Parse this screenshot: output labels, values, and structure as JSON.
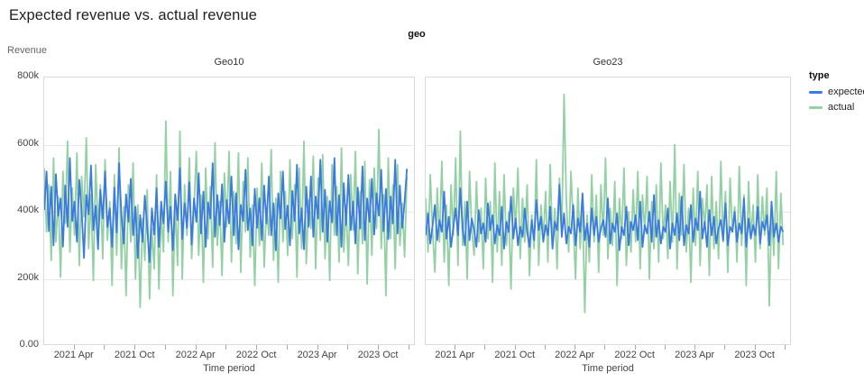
{
  "page": {
    "title": "Expected revenue vs. actual revenue"
  },
  "chart_data": {
    "type": "line",
    "title": "Expected revenue vs. actual revenue",
    "facet_field_label": "geo",
    "xlabel": "Time period",
    "ylabel": "Revenue",
    "y_unit": "thousands (k)",
    "ylim": [
      0,
      800
    ],
    "y_ticks": [
      {
        "value": 800,
        "label": "800k"
      },
      {
        "value": 600,
        "label": "600k"
      },
      {
        "value": 400,
        "label": "400k"
      },
      {
        "value": 200,
        "label": "200k"
      },
      {
        "value": 0,
        "label": "0.00"
      }
    ],
    "grid_values": [
      200,
      400,
      600
    ],
    "x_domain": [
      0,
      158
    ],
    "x_ticks": [
      {
        "pos": 13,
        "label": "2021 Apr"
      },
      {
        "pos": 26,
        "label": ""
      },
      {
        "pos": 39,
        "label": "2021 Oct"
      },
      {
        "pos": 52,
        "label": ""
      },
      {
        "pos": 65,
        "label": "2022 Apr"
      },
      {
        "pos": 78,
        "label": ""
      },
      {
        "pos": 91,
        "label": "2022 Oct"
      },
      {
        "pos": 104,
        "label": ""
      },
      {
        "pos": 117,
        "label": "2023 Apr"
      },
      {
        "pos": 130,
        "label": ""
      },
      {
        "pos": 143,
        "label": "2023 Oct"
      },
      {
        "pos": 156,
        "label": ""
      }
    ],
    "legend": {
      "title": "type",
      "position": "right",
      "items": [
        {
          "label": "expected",
          "color": "#3b7ae0"
        },
        {
          "label": "actual",
          "color": "#93d0a3"
        }
      ]
    },
    "facets": [
      {
        "label": "Geo10",
        "series": [
          {
            "name": "expected",
            "values": [
              405,
              520,
              342,
              475,
              300,
              512,
              388,
              440,
              296,
              478,
              355,
              560,
              372,
              430,
              310,
              495,
              405,
              262,
              450,
              392,
              538,
              345,
              418,
              288,
              465,
              380,
              520,
              355,
              410,
              295,
              472,
              338,
              545,
              390,
              305,
              452,
              370,
              498,
              330,
              415,
              262,
              390,
              310,
              448,
              355,
              250,
              410,
              332,
              470,
              295,
              430,
              365,
              490,
              340,
              415,
              285,
              452,
              375,
              530,
              318,
              425,
              352,
              488,
              302,
              440,
              370,
              515,
              335,
              460,
              295,
              428,
              380,
              545,
              325,
              450,
              360,
              482,
              310,
              435,
              365,
              505,
              330,
              455,
              288,
              420,
              372,
              525,
              345,
              410,
              300,
              468,
              352,
              440,
              315,
              478,
              365,
              505,
              330,
              425,
              285,
              455,
              380,
              520,
              348,
              418,
              300,
              462,
              372,
              540,
              335,
              410,
              288,
              475,
              355,
              505,
              325,
              445,
              380,
              555,
              340,
              465,
              310,
              432,
              368,
              560,
              330,
              450,
              295,
              485,
              360,
              510,
              345,
              430,
              305,
              472,
              350,
              535,
              315,
              440,
              370,
              498,
              332,
              455,
              388,
              525,
              342,
              468,
              318,
              445,
              365,
              555,
              335,
              478,
              352,
              430,
              528
            ]
          },
          {
            "name": "actual",
            "values": [
              530,
              340,
              480,
              255,
              560,
              310,
              445,
              205,
              520,
              365,
              610,
              280,
              470,
              330,
              575,
              240,
              505,
              385,
              620,
              290,
              450,
              195,
              540,
              350,
              480,
              260,
              555,
              315,
              430,
              180,
              510,
              270,
              590,
              230,
              415,
              150,
              480,
              310,
              545,
              200,
              420,
              115,
              380,
              255,
              465,
              140,
              350,
              230,
              510,
              170,
              395,
              280,
              670,
              310,
              520,
              150,
              430,
              240,
              640,
              200,
              480,
              330,
              560,
              260,
              410,
              580,
              270,
              450,
              190,
              530,
              320,
              475,
              235,
              605,
              300,
              430,
              210,
              515,
              355,
              580,
              250,
              460,
              305,
              575,
              220,
              490,
              340,
              560,
              265,
              420,
              180,
              470,
              300,
              545,
              235,
              415,
              330,
              585,
              255,
              440,
              190,
              520,
              310,
              460,
              270,
              555,
              320,
              480,
              205,
              530,
              290,
              610,
              245,
              435,
              350,
              565,
              230,
              500,
              315,
              570,
              260,
              445,
              195,
              540,
              330,
              475,
              250,
              590,
              280,
              420,
              240,
              510,
              345,
              580,
              215,
              460,
              305,
              550,
              185,
              495,
              270,
              530,
              350,
              645,
              290,
              450,
              150,
              560,
              320,
              480,
              230,
              540,
              300,
              425,
              265,
              505
            ]
          }
        ]
      },
      {
        "label": "Geo23",
        "series": [
          {
            "name": "expected",
            "values": [
              330,
              395,
              305,
              360,
              420,
              315,
              375,
              340,
              460,
              320,
              385,
              295,
              355,
              410,
              330,
              470,
              350,
              300,
              430,
              315,
              380,
              345,
              295,
              405,
              335,
              365,
              310,
              425,
              345,
              390,
              305,
              360,
              330,
              415,
              290,
              370,
              340,
              445,
              320,
              380,
              300,
              355,
              325,
              410,
              340,
              295,
              375,
              315,
              435,
              345,
              385,
              310,
              360,
              330,
              415,
              290,
              370,
              345,
              480,
              325,
              395,
              305,
              355,
              335,
              420,
              300,
              380,
              340,
              455,
              315,
              365,
              295,
              410,
              330,
              385,
              310,
              350,
              375,
              325,
              440,
              305,
              365,
              340,
              395,
              285,
              355,
              330,
              415,
              300,
              370,
              345,
              390,
              315,
              430,
              295,
              360,
              335,
              400,
              310,
              450,
              325,
              375,
              305,
              355,
              340,
              410,
              290,
              365,
              330,
              395,
              315,
              445,
              300,
              360,
              335,
              420,
              310,
              380,
              345,
              460,
              320,
              370,
              295,
              405,
              330,
              385,
              305,
              350,
              375,
              315,
              425,
              300,
              355,
              340,
              400,
              310,
              365,
              335,
              440,
              295,
              380,
              320,
              360,
              330,
              415,
              305,
              370,
              345,
              390,
              300,
              430,
              325,
              365,
              310,
              355,
              340
            ]
          },
          {
            "name": "actual",
            "values": [
              440,
              280,
              510,
              340,
              220,
              470,
              310,
              550,
              250,
              420,
              180,
              480,
              330,
              560,
              240,
              640,
              300,
              430,
              200,
              520,
              350,
              270,
              490,
              310,
              410,
              230,
              500,
              320,
              430,
              190,
              545,
              280,
              460,
              240,
              510,
              300,
              400,
              170,
              470,
              350,
              530,
              260,
              440,
              310,
              480,
              210,
              390,
              290,
              555,
              240,
              420,
              320,
              460,
              250,
              540,
              300,
              410,
              230,
              500,
              340,
              750,
              430,
              280,
              520,
              360,
              200,
              470,
              290,
              430,
              100,
              390,
              250,
              510,
              310,
              450,
              220,
              480,
              330,
              560,
              260,
              410,
              300,
              490,
              180,
              440,
              320,
              530,
              240,
              400,
              280,
              465,
              310,
              520,
              230,
              450,
              340,
              505,
              200,
              430,
              290,
              480,
              250,
              545,
              320,
              420,
              260,
              490,
              310,
              600,
              230,
              455,
              330,
              540,
              280,
              410,
              190,
              470,
              300,
              520,
              240,
              440,
              350,
              480,
              210,
              505,
              290,
              430,
              260,
              550,
              310,
              460,
              220,
              500,
              340,
              415,
              250,
              535,
              300,
              450,
              180,
              490,
              320,
              420,
              250,
              510,
              290,
              445,
              330,
              470,
              120,
              400,
              270,
              520,
              230,
              455,
              300
            ]
          }
        ]
      }
    ]
  },
  "layout_colors": {
    "grid": "#e7e7e7",
    "plot_border": "#d9d9d9",
    "axis_text": "#444444",
    "title_text": "#1f1f1f"
  }
}
